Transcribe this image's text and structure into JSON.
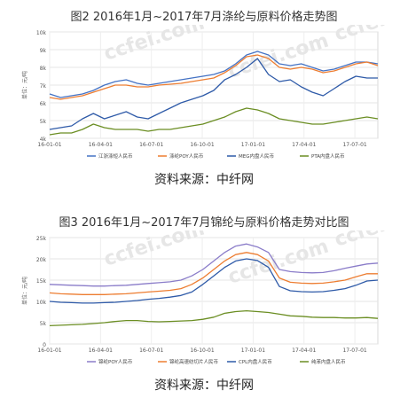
{
  "figures": [
    {
      "title": "图2    2016年1月~2017年7月涤纶与原料价格走势图",
      "source": "资料来源：中纤网"
    },
    {
      "title": "图3    2016年1月~2017年7月锦纶与原料价格走势对比图",
      "source": "资料来源：中纤网"
    }
  ],
  "watermark": "ccfei.com",
  "chart_data": [
    {
      "type": "line",
      "ylabel": "单位：元/吨",
      "y_ticks": [
        "4k",
        "5k",
        "6k",
        "7k",
        "8k",
        "9k",
        "10k"
      ],
      "ylim": [
        4000,
        10000
      ],
      "x_ticks": [
        "16-01-01",
        "16-04-01",
        "16-07-01",
        "16-10-01",
        "17-01-01",
        "17-04-01",
        "17-07-01"
      ],
      "grid": true,
      "legend_position": "bottom",
      "series": [
        {
          "name": "江浙涤短人民币",
          "color": "#4472c4",
          "values": [
            6500,
            6300,
            6400,
            6500,
            6700,
            7000,
            7200,
            7300,
            7100,
            7000,
            7100,
            7200,
            7300,
            7400,
            7500,
            7600,
            7800,
            8200,
            8700,
            8900,
            8700,
            8200,
            8100,
            8200,
            8000,
            7800,
            7900,
            8100,
            8300,
            8300,
            8200
          ]
        },
        {
          "name": "涤纶POY人民币",
          "color": "#ed7d31",
          "values": [
            6300,
            6200,
            6300,
            6400,
            6600,
            6800,
            7000,
            7000,
            6900,
            6900,
            7000,
            7050,
            7100,
            7200,
            7300,
            7400,
            7700,
            8100,
            8600,
            8700,
            8500,
            8000,
            7900,
            8000,
            7900,
            7700,
            7800,
            8000,
            8200,
            8300,
            8100
          ]
        },
        {
          "name": "MEG内盘人民币",
          "color": "#2e5aa8",
          "values": [
            4500,
            4600,
            4700,
            5100,
            5400,
            5100,
            5300,
            5500,
            5200,
            5100,
            5400,
            5700,
            6000,
            6200,
            6400,
            6700,
            7300,
            7600,
            8000,
            8500,
            7600,
            7200,
            7300,
            6900,
            6600,
            6400,
            6800,
            7200,
            7500,
            7400,
            7400
          ]
        },
        {
          "name": "PTA内盘人民币",
          "color": "#6b8e23",
          "values": [
            4200,
            4300,
            4300,
            4500,
            4800,
            4600,
            4500,
            4500,
            4500,
            4400,
            4500,
            4500,
            4600,
            4700,
            4800,
            5000,
            5200,
            5500,
            5700,
            5600,
            5400,
            5100,
            5000,
            4900,
            4800,
            4800,
            4900,
            5000,
            5100,
            5200,
            5100
          ]
        }
      ]
    },
    {
      "type": "line",
      "ylabel": "单位：元/吨",
      "y_ticks": [
        "0",
        "5k",
        "10k",
        "15k",
        "20k",
        "25k"
      ],
      "ylim": [
        0,
        25000
      ],
      "x_ticks": [
        "16-01-01",
        "16-04-01",
        "16-07-01",
        "16-10-01",
        "17-01-01",
        "17-04-01",
        "17-07-01"
      ],
      "grid": true,
      "legend_position": "bottom",
      "series": [
        {
          "name": "锦纶POY人民币",
          "color": "#8a7cc9",
          "values": [
            14000,
            13900,
            13800,
            13700,
            13600,
            13600,
            13700,
            13800,
            14000,
            14200,
            14400,
            14600,
            15000,
            16000,
            17500,
            19500,
            21500,
            23000,
            23500,
            22800,
            21500,
            17500,
            17000,
            16800,
            16700,
            16800,
            17200,
            17800,
            18300,
            18800,
            19000
          ]
        },
        {
          "name": "锦纶高速纺切片人民币",
          "color": "#ed7d31",
          "values": [
            12000,
            11800,
            11700,
            11600,
            11600,
            11600,
            11700,
            11800,
            12000,
            12200,
            12400,
            12600,
            13000,
            14000,
            15500,
            17500,
            19500,
            21000,
            21500,
            21000,
            19500,
            15500,
            14500,
            14300,
            14200,
            14300,
            14600,
            15000,
            15800,
            16500,
            16500
          ]
        },
        {
          "name": "CPL内盘人民币",
          "color": "#2e5aa8",
          "values": [
            10000,
            9800,
            9700,
            9600,
            9600,
            9700,
            9800,
            10000,
            10200,
            10500,
            10700,
            11000,
            11400,
            12200,
            14000,
            16000,
            18000,
            19500,
            20000,
            19600,
            18000,
            13500,
            12500,
            12300,
            12200,
            12300,
            12600,
            13000,
            13800,
            14800,
            15000
          ]
        },
        {
          "name": "纯苯内盘人民币",
          "color": "#6b8e23",
          "values": [
            4300,
            4400,
            4500,
            4600,
            4800,
            5000,
            5300,
            5500,
            5500,
            5300,
            5200,
            5300,
            5400,
            5500,
            5800,
            6300,
            7200,
            7600,
            7800,
            7600,
            7400,
            7000,
            6600,
            6500,
            6300,
            6200,
            6200,
            6100,
            6100,
            6200,
            6000
          ]
        }
      ]
    }
  ]
}
